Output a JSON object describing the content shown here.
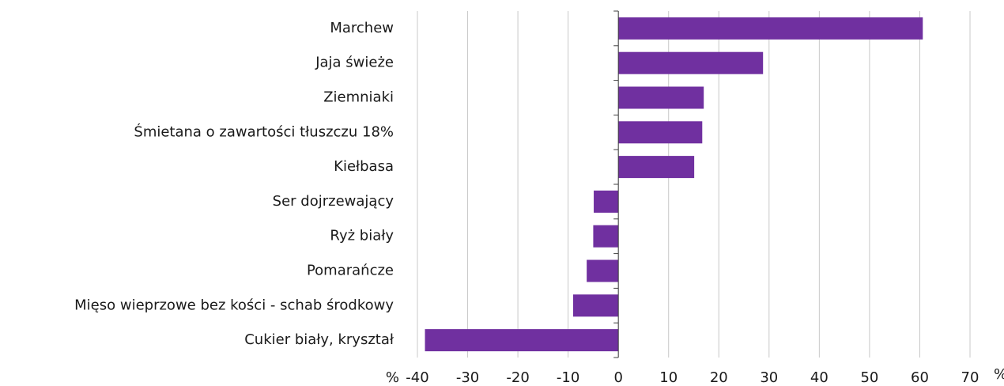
{
  "chart_data": {
    "type": "barh",
    "categories": [
      "Marchew",
      "Jaja świeże",
      "Ziemniaki",
      "Śmietana o zawartości tłuszczu 18%",
      "Kiełbasa",
      "Ser dojrzewający",
      "Ryż biały",
      "Pomarańcze",
      "Mięso wieprzowe bez kości - schab środkowy",
      "Cukier biały, kryształ"
    ],
    "values": [
      60.6,
      28.8,
      17.0,
      16.7,
      15.1,
      -4.9,
      -5.0,
      -6.3,
      -9.0,
      -38.5
    ],
    "color": "#7030a0",
    "xlim": [
      -40,
      70
    ],
    "xticks": [
      -40,
      -30,
      -20,
      -10,
      0,
      10,
      20,
      30,
      40,
      50,
      60,
      70
    ],
    "xunit_left": "%",
    "xunit_right": "%",
    "grid": true
  }
}
